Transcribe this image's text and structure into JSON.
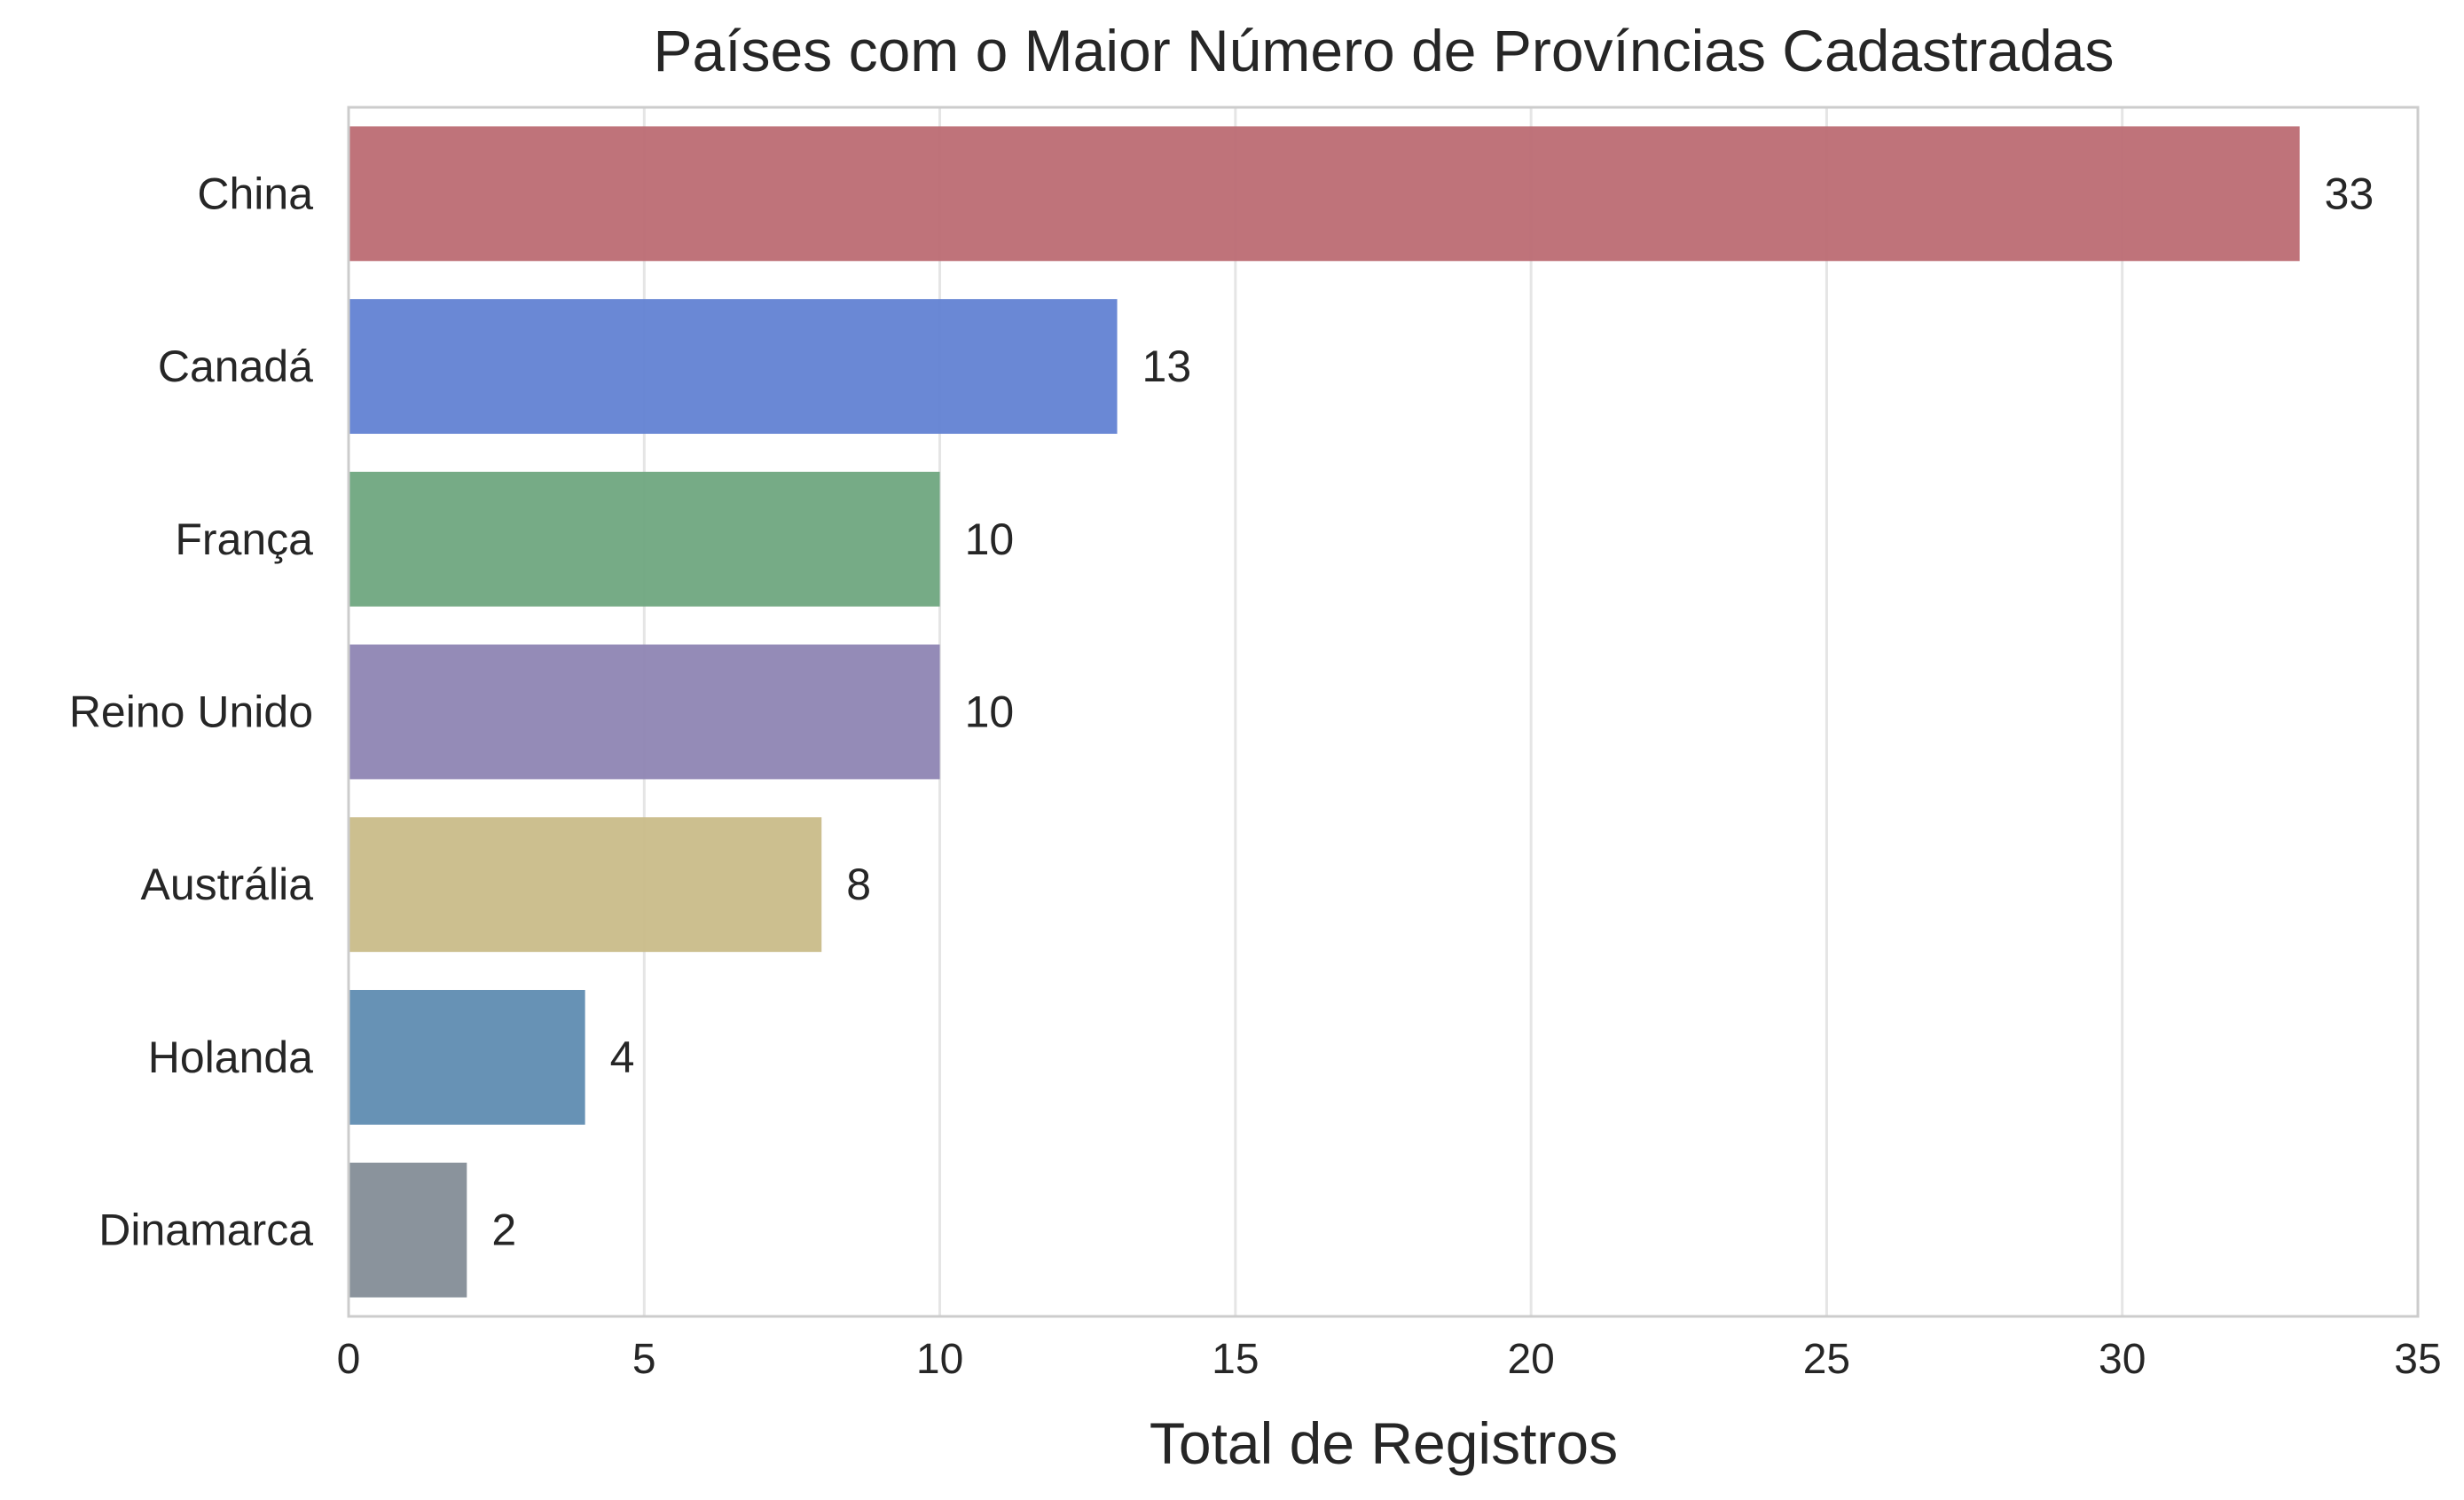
{
  "chart_data": {
    "type": "bar",
    "orientation": "horizontal",
    "title": "Países com o Maior Número de Províncias Cadastradas",
    "xlabel": "Total de Registros",
    "ylabel": "",
    "categories": [
      "China",
      "Canadá",
      "França",
      "Reino Unido",
      "Austrália",
      "Holanda",
      "Dinamarca"
    ],
    "values": [
      33,
      13,
      10,
      10,
      8,
      4,
      2
    ],
    "data_labels": [
      "33",
      "13",
      "10",
      "10",
      "8",
      "4",
      "2"
    ],
    "colors": [
      "#bc6b73",
      "#6282d3",
      "#6fa77f",
      "#8e85b3",
      "#c9bc89",
      "#5f8cb1",
      "#848d97"
    ],
    "xlim": [
      0,
      35
    ],
    "xticks": [
      0,
      5,
      10,
      15,
      20,
      25,
      30,
      35
    ],
    "xtick_labels": [
      "0",
      "5",
      "10",
      "15",
      "20",
      "25",
      "30",
      "35"
    ],
    "grid": "vertical",
    "legend": "none"
  }
}
